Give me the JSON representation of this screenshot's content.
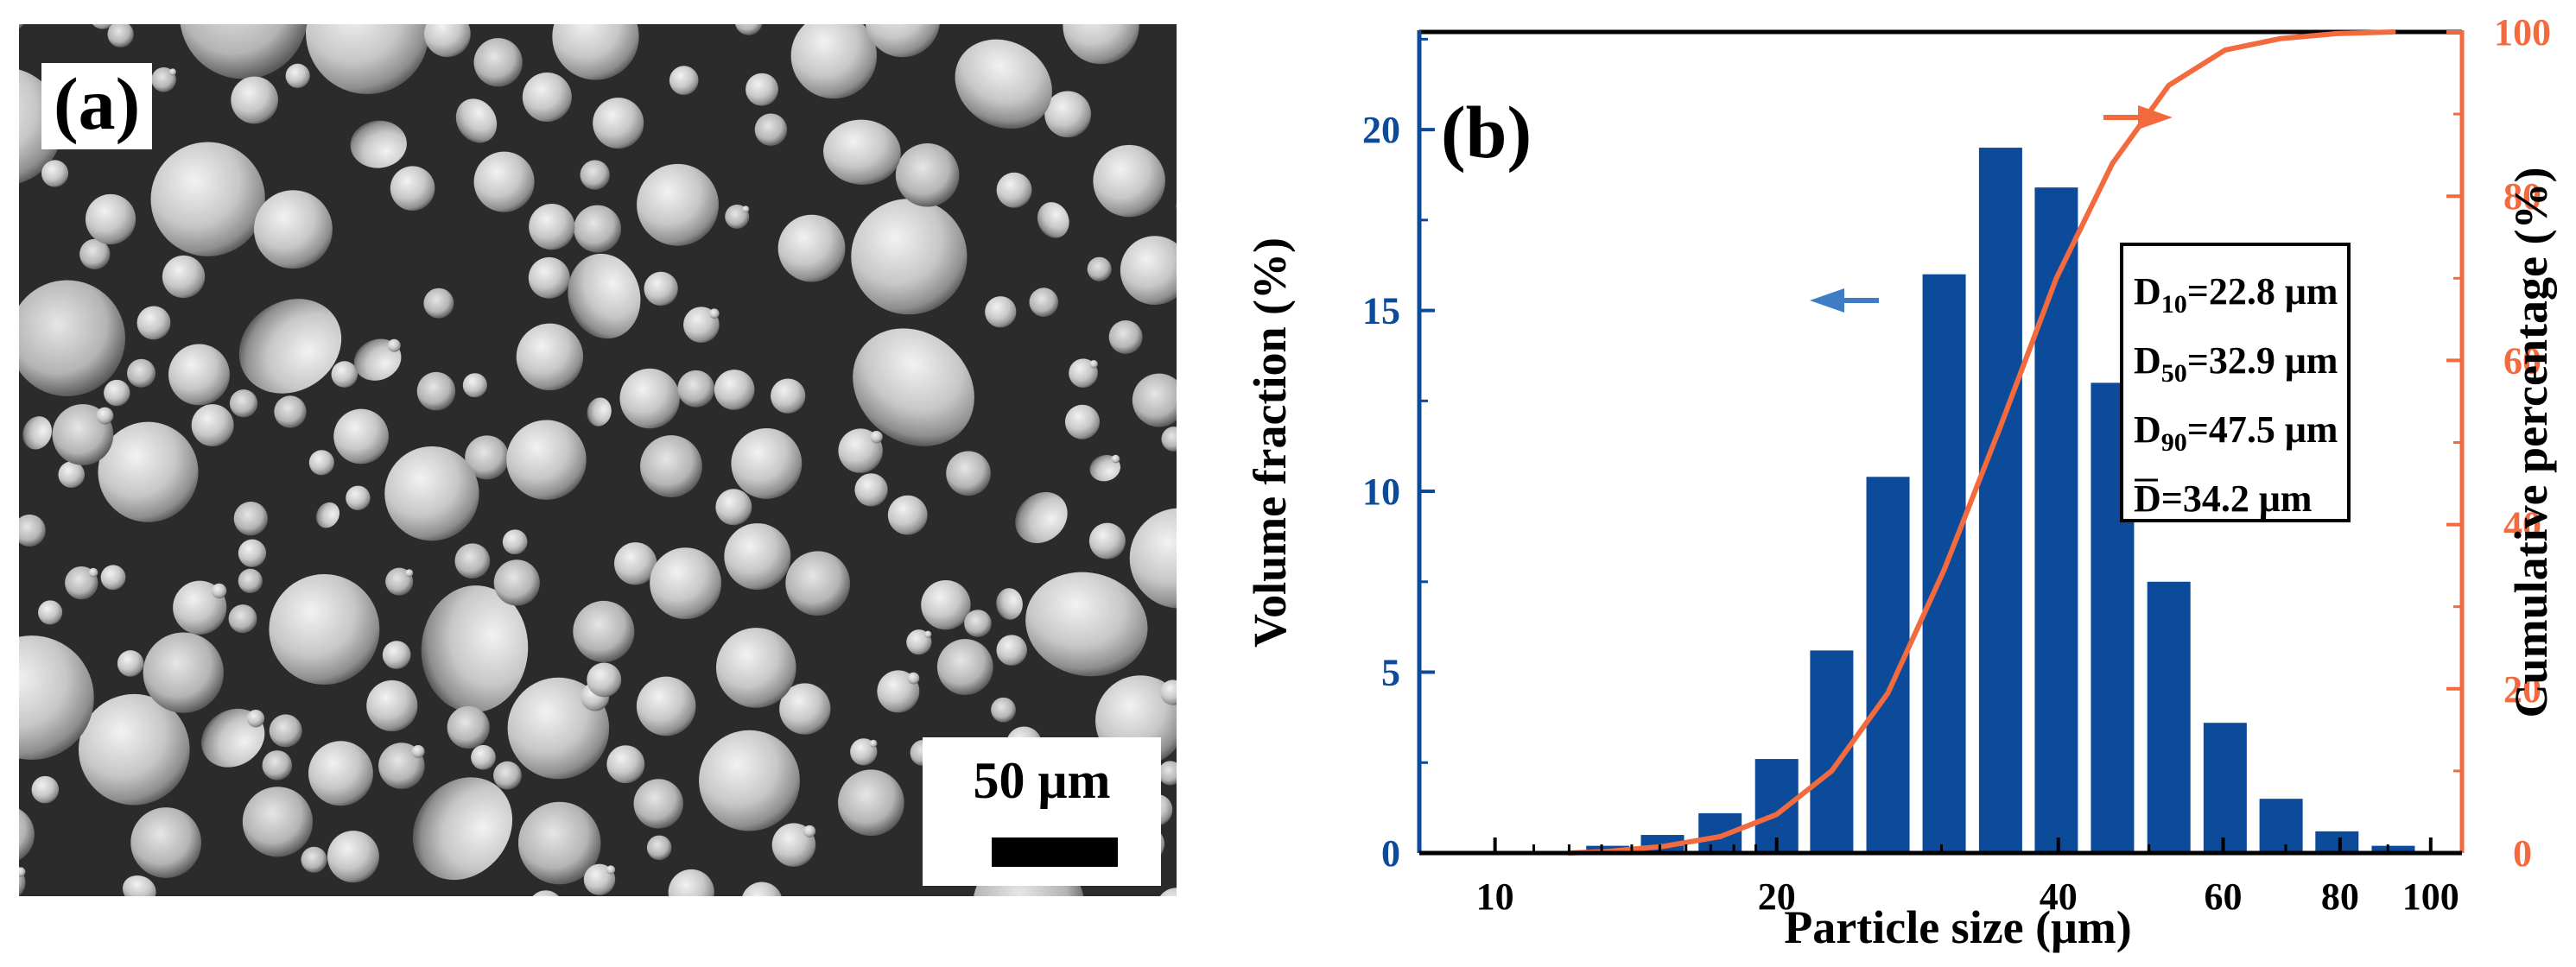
{
  "panel_a": {
    "label": "(a)",
    "description_kind": "SEM micrograph of powder particles",
    "scale_bar_text": "50 μm"
  },
  "panel_b": {
    "label": "(b)"
  },
  "chart_data": {
    "type": "bar",
    "title": "",
    "xscale": "log",
    "xlabel": "Particle size (μm)",
    "ylabel": "Volume fraction (%)",
    "y2label": "Cumulative percentage (%)",
    "xlim": [
      8.3,
      108
    ],
    "ylim": [
      0,
      22.7
    ],
    "y2lim": [
      0,
      100
    ],
    "xticks": [
      10,
      20,
      40,
      60,
      80,
      100
    ],
    "yticks": [
      0,
      5,
      10,
      15,
      20
    ],
    "y2ticks": [
      0,
      20,
      40,
      60,
      80,
      100
    ],
    "series": [
      {
        "name": "Volume fraction",
        "type": "bar",
        "axis": "left",
        "x": [
          13.2,
          15.1,
          17.4,
          20.0,
          22.9,
          26.3,
          30.2,
          34.7,
          39.8,
          45.7,
          52.5,
          60.3,
          69.2,
          79.4,
          91.2
        ],
        "values": [
          0.2,
          0.5,
          1.1,
          2.6,
          5.6,
          10.4,
          16.0,
          19.5,
          18.4,
          13.0,
          7.5,
          3.6,
          1.5,
          0.6,
          0.2
        ]
      },
      {
        "name": "Cumulative percentage",
        "type": "line",
        "axis": "right",
        "x": [
          12,
          13.2,
          15.1,
          17.4,
          20.0,
          22.9,
          26.3,
          30.2,
          34.7,
          39.8,
          45.7,
          52.5,
          60.3,
          69.2,
          79.4,
          91.2
        ],
        "values": [
          0,
          0.2,
          0.8,
          2.0,
          4.7,
          10.0,
          19.5,
          34.5,
          52.0,
          70.0,
          84.0,
          93.5,
          97.8,
          99.2,
          99.8,
          100
        ]
      }
    ],
    "annotations": [
      {
        "sub": "10",
        "text": "=22.8 μm"
      },
      {
        "sub": "50",
        "text": "=32.9 μm"
      },
      {
        "sub": "90",
        "text": "=47.5 μm"
      }
    ],
    "mean_annotation": "D=34.2 μm",
    "colors": {
      "bars": "#0c4a9a",
      "line": "#f26a3d",
      "left_axis": "#0c4a9a",
      "right_axis": "#f26a3d"
    }
  }
}
